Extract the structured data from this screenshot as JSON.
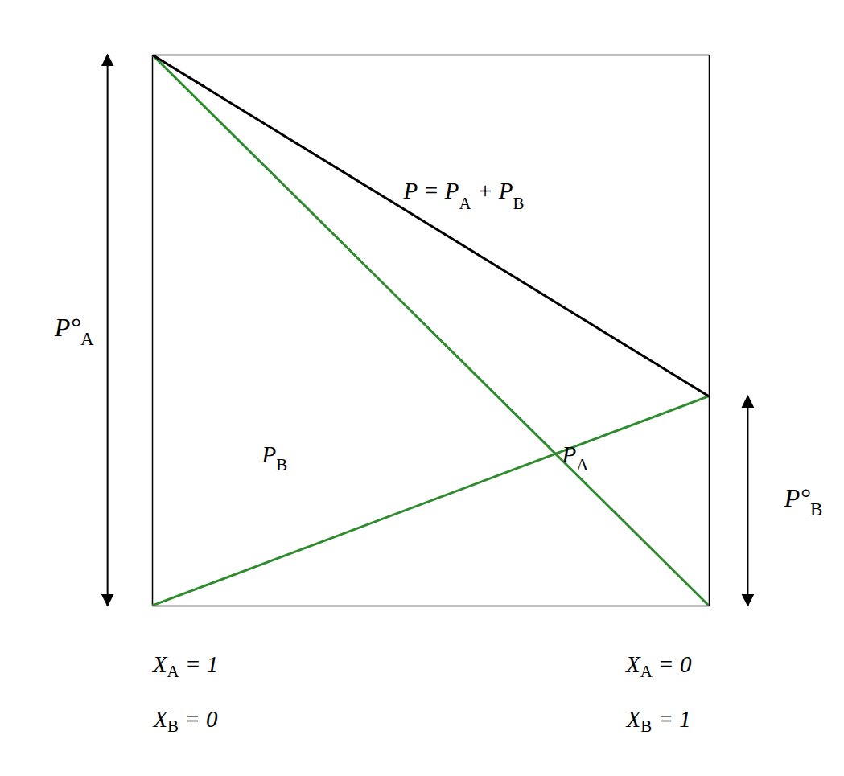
{
  "chart_data": {
    "type": "line",
    "x": [
      0,
      1
    ],
    "series": [
      {
        "color": "#2e8b2e",
        "values": [
          1.0,
          0
        ]
      },
      {
        "color": "#2e8b2e",
        "values": [
          0,
          0.38
        ]
      },
      {
        "color": "#000000",
        "values": [
          1.0,
          0.38
        ]
      }
    ],
    "xlim": [
      0,
      1
    ],
    "ylim": [
      0,
      1
    ],
    "xticks": [],
    "yticks": [],
    "tick_labels": false,
    "grid": false,
    "annotations": [
      "P = PA + PB",
      "PB",
      "PA",
      "P°A",
      "P°B",
      "XA = 1",
      "XB = 0",
      "XA = 0",
      "XB = 1"
    ]
  }
}
